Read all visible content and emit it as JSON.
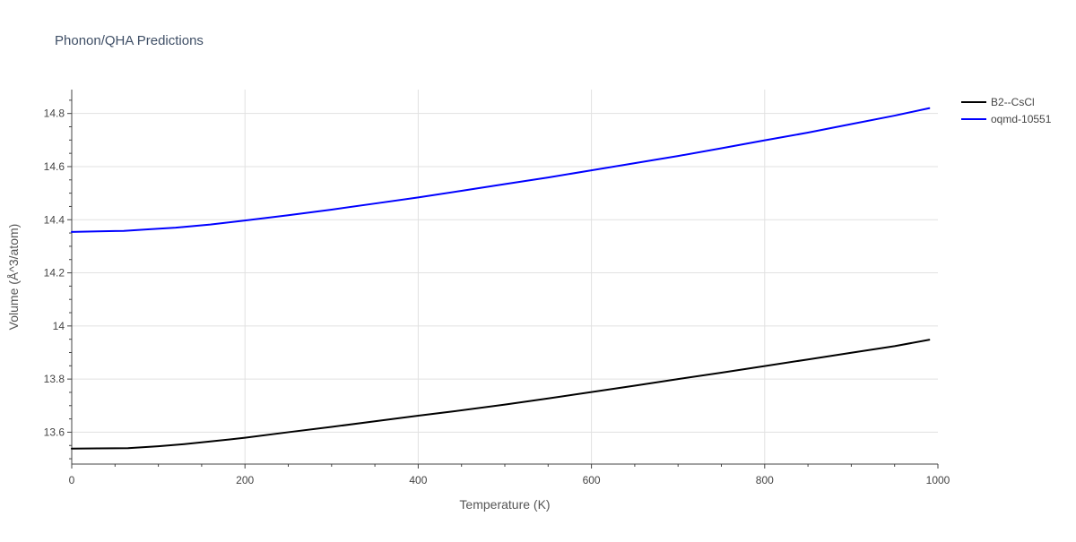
{
  "chart_data": {
    "type": "line",
    "title": "Phonon/QHA Predictions",
    "xlabel": "Temperature (K)",
    "ylabel": "Volume (Å^3/atom)",
    "xlim": [
      0,
      1000
    ],
    "ylim": [
      13.48,
      14.89
    ],
    "x_ticks": [
      0,
      200,
      400,
      600,
      800,
      1000
    ],
    "x_tick_labels": [
      "0",
      "200",
      "400",
      "600",
      "800",
      "1000"
    ],
    "y_ticks": [
      13.6,
      13.8,
      14.0,
      14.2,
      14.4,
      14.6,
      14.8
    ],
    "y_tick_labels": [
      "13.6",
      "13.8",
      "14",
      "14.2",
      "14.4",
      "14.6",
      "14.8"
    ],
    "grid": true,
    "legend_position": "top-right",
    "series": [
      {
        "name": "B2--CsCl",
        "color": "#000000",
        "x": [
          0,
          30,
          65,
          100,
          130,
          160,
          200,
          250,
          300,
          350,
          400,
          440,
          500,
          550,
          600,
          650,
          700,
          750,
          800,
          850,
          900,
          950,
          990
        ],
        "y": [
          13.538,
          13.539,
          13.54,
          13.547,
          13.555,
          13.565,
          13.579,
          13.6,
          13.62,
          13.641,
          13.662,
          13.678,
          13.704,
          13.727,
          13.751,
          13.775,
          13.8,
          13.824,
          13.849,
          13.874,
          13.899,
          13.924,
          13.948
        ]
      },
      {
        "name": "oqmd-10551",
        "color": "#0000ff",
        "x": [
          0,
          30,
          60,
          90,
          120,
          160,
          200,
          250,
          300,
          350,
          400,
          450,
          500,
          550,
          600,
          650,
          700,
          750,
          800,
          850,
          900,
          950,
          990
        ],
        "y": [
          14.354,
          14.356,
          14.358,
          14.364,
          14.37,
          14.382,
          14.397,
          14.417,
          14.438,
          14.461,
          14.484,
          14.509,
          14.534,
          14.559,
          14.586,
          14.613,
          14.64,
          14.669,
          14.699,
          14.728,
          14.76,
          14.792,
          14.82
        ]
      }
    ]
  }
}
